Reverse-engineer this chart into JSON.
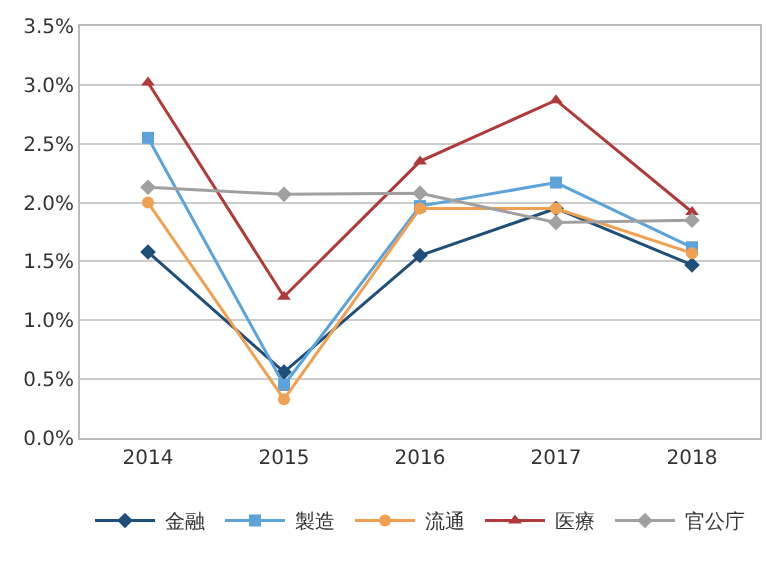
{
  "chart_data": {
    "type": "line",
    "categories": [
      "2014",
      "2015",
      "2016",
      "2017",
      "2018"
    ],
    "series": [
      {
        "name": "金融",
        "color": "#1f4e79",
        "marker": "diamond",
        "values": [
          1.58,
          0.56,
          1.55,
          1.95,
          1.47
        ]
      },
      {
        "name": "製造",
        "color": "#5ba3d9",
        "marker": "square",
        "values": [
          2.55,
          0.45,
          1.97,
          2.17,
          1.62
        ]
      },
      {
        "name": "流通",
        "color": "#f0a050",
        "marker": "circle",
        "values": [
          2.0,
          0.33,
          1.95,
          1.95,
          1.57
        ]
      },
      {
        "name": "医療",
        "color": "#b03a3a",
        "marker": "triangle",
        "values": [
          3.02,
          1.2,
          2.35,
          2.87,
          1.92
        ]
      },
      {
        "name": "官公庁",
        "color": "#a0a0a0",
        "marker": "diamond",
        "values": [
          2.13,
          2.07,
          2.08,
          1.83,
          1.85
        ]
      }
    ],
    "ylim": [
      0,
      3.5
    ],
    "yticks": [
      {
        "value": 0,
        "label": "0.0%"
      },
      {
        "value": 0.5,
        "label": "0.5%"
      },
      {
        "value": 1,
        "label": "1.0%"
      },
      {
        "value": 1.5,
        "label": "1.5%"
      },
      {
        "value": 2,
        "label": "2.0%"
      },
      {
        "value": 2.5,
        "label": "2.5%"
      },
      {
        "value": 3,
        "label": "3.0%"
      },
      {
        "value": 3.5,
        "label": "3.5%"
      }
    ],
    "grid": "y",
    "legend": "bottom",
    "line_style": "solid"
  }
}
